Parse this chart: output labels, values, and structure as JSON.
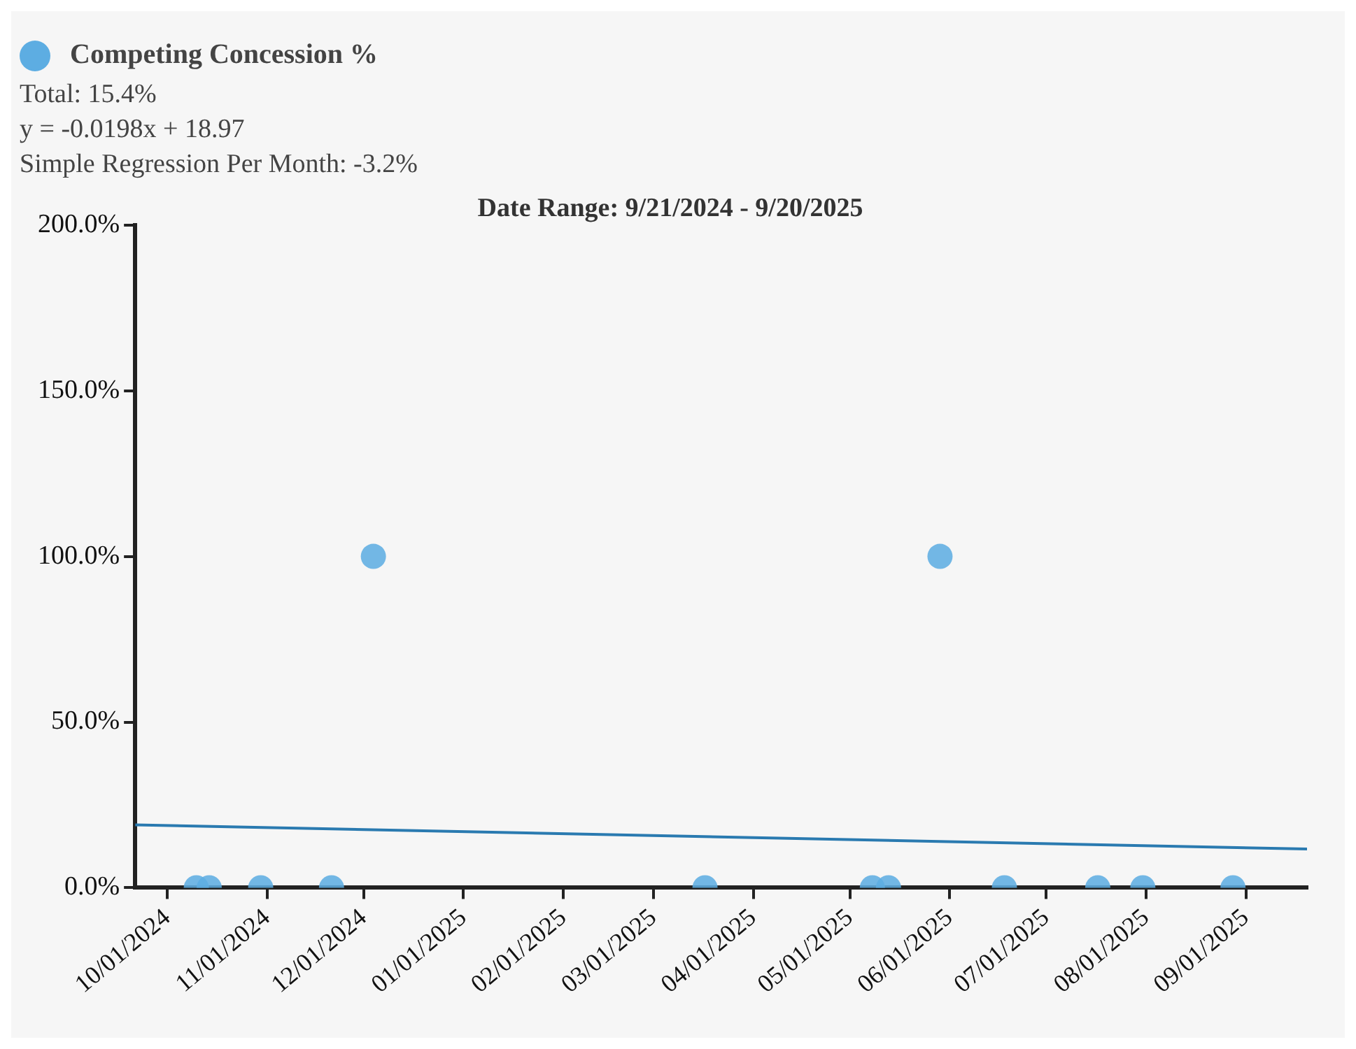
{
  "chart_data": {
    "type": "scatter",
    "title": "Date Range: 9/21/2024 - 9/20/2025",
    "annotations": [
      "Total: 15.4%",
      "y = -0.0198x + 18.97",
      "Simple Regression Per Month: -3.2%"
    ],
    "series": [
      {
        "name": "Competing Concession %",
        "marker": "circle",
        "color": "#5dade2",
        "x": [
          "2024-10-10",
          "2024-10-14",
          "2024-10-30",
          "2024-11-21",
          "2024-12-04",
          "2025-03-17",
          "2025-05-08",
          "2025-05-13",
          "2025-05-29",
          "2025-06-18",
          "2025-07-17",
          "2025-07-31",
          "2025-08-28"
        ],
        "values": [
          0,
          0,
          0,
          0,
          100,
          0,
          0,
          0,
          100,
          0,
          0,
          0,
          0
        ]
      },
      {
        "type": "line",
        "marker": "none",
        "color": "#2a7ab0",
        "x": [
          "2024-09-21",
          "2025-09-20"
        ],
        "values": [
          19,
          11.7
        ]
      }
    ],
    "xlim": [
      "2024-09-21",
      "2025-09-20"
    ],
    "xticks": [
      {
        "value": "2024-10-01",
        "label": "10/01/2024"
      },
      {
        "value": "2024-11-01",
        "label": "11/01/2024"
      },
      {
        "value": "2024-12-01",
        "label": "12/01/2024"
      },
      {
        "value": "2025-01-01",
        "label": "01/01/2025"
      },
      {
        "value": "2025-02-01",
        "label": "02/01/2025"
      },
      {
        "value": "2025-03-01",
        "label": "03/01/2025"
      },
      {
        "value": "2025-04-01",
        "label": "04/01/2025"
      },
      {
        "value": "2025-05-01",
        "label": "05/01/2025"
      },
      {
        "value": "2025-06-01",
        "label": "06/01/2025"
      },
      {
        "value": "2025-07-01",
        "label": "07/01/2025"
      },
      {
        "value": "2025-08-01",
        "label": "08/01/2025"
      },
      {
        "value": "2025-09-01",
        "label": "09/01/2025"
      }
    ],
    "ylim": [
      0,
      200
    ],
    "yticks": [
      {
        "value": 0,
        "label": "0.0%"
      },
      {
        "value": 50,
        "label": "50.0%"
      },
      {
        "value": 100,
        "label": "100.0%"
      },
      {
        "value": 150,
        "label": "150.0%"
      },
      {
        "value": 200,
        "label": "200.0%"
      }
    ],
    "grid": false,
    "legend": "top left"
  }
}
